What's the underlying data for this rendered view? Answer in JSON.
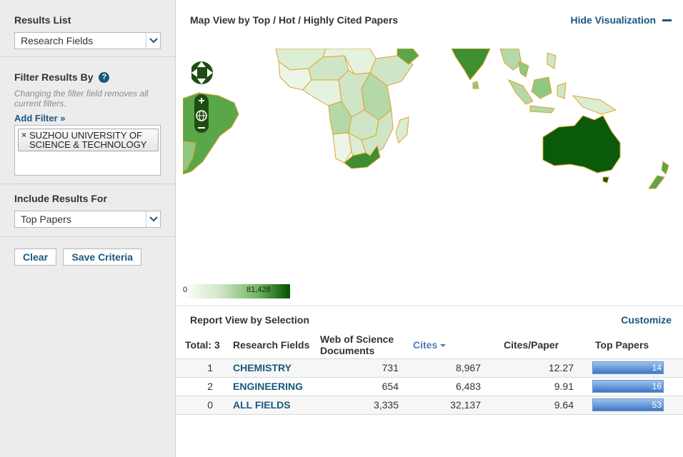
{
  "sidebar": {
    "results_list_label": "Results List",
    "results_list_value": "Research Fields",
    "filter_heading": "Filter Results By",
    "help_glyph": "?",
    "filter_note": "Changing the filter field removes all current filters.",
    "add_filter": "Add Filter »",
    "filter_chip_remove": "×",
    "filter_chip_text": "SUZHOU UNIVERSITY OF SCIENCE & TECHNOLOGY",
    "include_label": "Include Results For",
    "include_value": "Top Papers",
    "clear_button": "Clear",
    "save_button": "Save Criteria"
  },
  "map": {
    "title": "Map View by Top / Hot / Highly Cited Papers",
    "hide_label": "Hide Visualization",
    "legend_min": "0",
    "legend_max": "81,428",
    "colors": {
      "dark": "#005100",
      "mid": "#5aa74a",
      "light": "#cfe6c6",
      "border": "#e0a22c"
    }
  },
  "report": {
    "title": "Report View by Selection",
    "customize": "Customize",
    "headers": {
      "total": "Total: 3",
      "field": "Research Fields",
      "wos": "Web of Science Documents",
      "cites": "Cites",
      "cites_per_paper": "Cites/Paper",
      "top_papers": "Top Papers"
    },
    "rows": [
      {
        "rank": "1",
        "field": "CHEMISTRY",
        "wos": "731",
        "cites": "8,967",
        "cpp": "12.27",
        "top": "14",
        "top_value": 14
      },
      {
        "rank": "2",
        "field": "ENGINEERING",
        "wos": "654",
        "cites": "6,483",
        "cpp": "9.91",
        "top": "16",
        "top_value": 16
      },
      {
        "rank": "0",
        "field": "ALL FIELDS",
        "wos": "3,335",
        "cites": "32,137",
        "cpp": "9.64",
        "top": "53",
        "top_value": 53
      }
    ]
  },
  "icons": {
    "dropdown": "chevron-down-icon",
    "help": "help-icon",
    "pan": "pan-control-icon",
    "zoom_in": "zoom-in-icon",
    "zoom_out": "zoom-out-icon",
    "globe": "globe-icon",
    "minus": "minus-icon",
    "sort": "sort-desc-icon"
  }
}
